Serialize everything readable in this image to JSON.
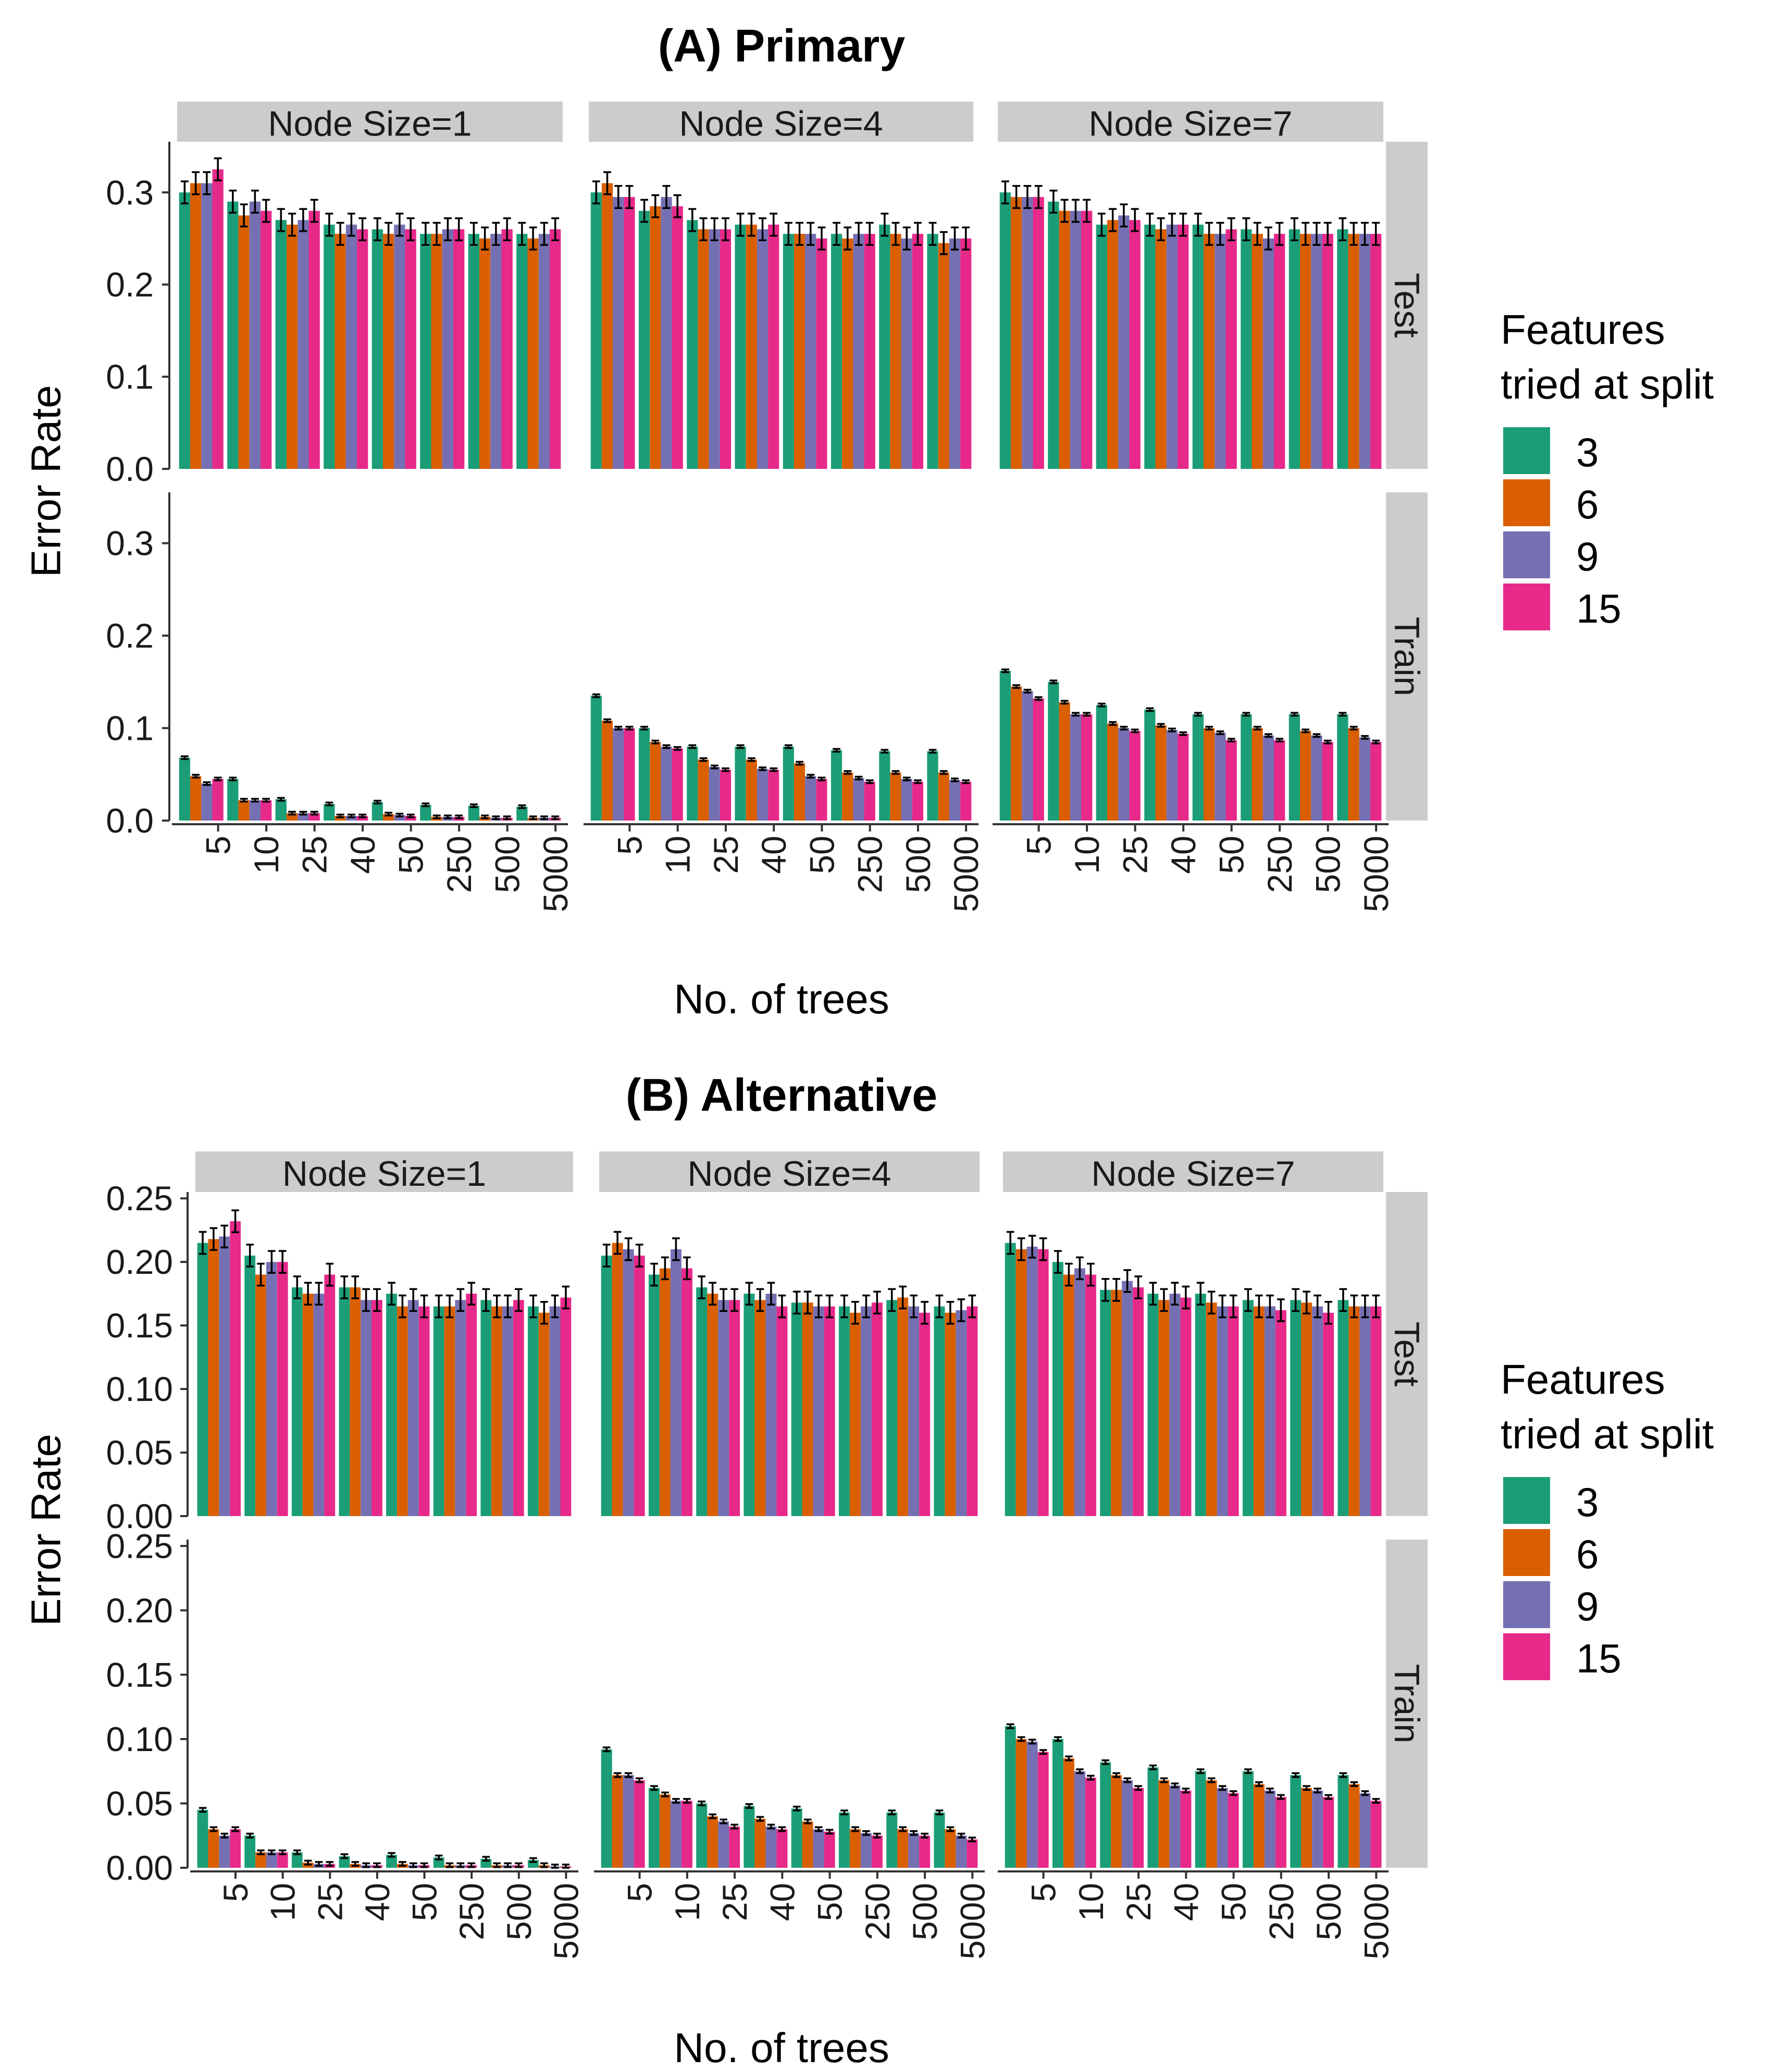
{
  "colors": {
    "3": "#1b9e77",
    "6": "#d95f02",
    "9": "#7570b3",
    "15": "#e7298a",
    "strip": "#cccccc",
    "errorbar": "#000000",
    "axis": "#333333"
  },
  "legend": {
    "title_line1": "Features",
    "title_line2": "tried at split",
    "entries": [
      "3",
      "6",
      "9",
      "15"
    ]
  },
  "chart_data": [
    {
      "type": "bar",
      "title": "(A) Primary",
      "xlabel": "No. of trees",
      "ylabel": "Error Rate",
      "facet_columns": [
        "Node Size=1",
        "Node Size=4",
        "Node Size=7"
      ],
      "facet_rows": [
        "Test",
        "Train"
      ],
      "categories": [
        "5",
        "10",
        "25",
        "40",
        "50",
        "250",
        "500",
        "5000"
      ],
      "series_names": [
        "3",
        "6",
        "9",
        "15"
      ],
      "y_ticks": [
        "0.0",
        "0.1",
        "0.2",
        "0.3"
      ],
      "ylim": [
        0,
        0.355
      ],
      "panels": {
        "Test": {
          "Node Size=1": {
            "3": [
              0.3,
              0.29,
              0.27,
              0.265,
              0.26,
              0.255,
              0.255,
              0.255
            ],
            "6": [
              0.31,
              0.275,
              0.265,
              0.255,
              0.255,
              0.255,
              0.25,
              0.25
            ],
            "9": [
              0.31,
              0.29,
              0.27,
              0.265,
              0.265,
              0.26,
              0.255,
              0.255
            ],
            "15": [
              0.325,
              0.28,
              0.28,
              0.26,
              0.26,
              0.26,
              0.26,
              0.26
            ]
          },
          "Node Size=4": {
            "3": [
              0.3,
              0.28,
              0.27,
              0.265,
              0.255,
              0.255,
              0.265,
              0.255
            ],
            "6": [
              0.31,
              0.285,
              0.26,
              0.265,
              0.255,
              0.25,
              0.255,
              0.245
            ],
            "9": [
              0.295,
              0.295,
              0.26,
              0.26,
              0.255,
              0.255,
              0.25,
              0.25
            ],
            "15": [
              0.295,
              0.285,
              0.26,
              0.265,
              0.25,
              0.255,
              0.255,
              0.25
            ]
          },
          "Node Size=7": {
            "3": [
              0.3,
              0.29,
              0.265,
              0.265,
              0.265,
              0.26,
              0.26,
              0.26
            ],
            "6": [
              0.295,
              0.28,
              0.27,
              0.26,
              0.255,
              0.255,
              0.255,
              0.255
            ],
            "9": [
              0.295,
              0.28,
              0.275,
              0.265,
              0.255,
              0.25,
              0.255,
              0.255
            ],
            "15": [
              0.295,
              0.28,
              0.27,
              0.265,
              0.26,
              0.255,
              0.255,
              0.255
            ]
          }
        },
        "Train": {
          "Node Size=1": {
            "3": [
              0.068,
              0.045,
              0.023,
              0.018,
              0.02,
              0.017,
              0.016,
              0.015
            ],
            "6": [
              0.048,
              0.022,
              0.008,
              0.005,
              0.007,
              0.004,
              0.004,
              0.003
            ],
            "9": [
              0.04,
              0.022,
              0.008,
              0.005,
              0.006,
              0.004,
              0.003,
              0.003
            ],
            "15": [
              0.045,
              0.022,
              0.008,
              0.005,
              0.005,
              0.004,
              0.003,
              0.003
            ]
          },
          "Node Size=4": {
            "3": [
              0.135,
              0.1,
              0.08,
              0.08,
              0.08,
              0.076,
              0.075,
              0.075
            ],
            "6": [
              0.108,
              0.085,
              0.066,
              0.066,
              0.062,
              0.052,
              0.052,
              0.052
            ],
            "9": [
              0.1,
              0.08,
              0.058,
              0.056,
              0.048,
              0.046,
              0.045,
              0.044
            ],
            "15": [
              0.1,
              0.078,
              0.055,
              0.055,
              0.045,
              0.042,
              0.042,
              0.042
            ]
          },
          "Node Size=7": {
            "3": [
              0.162,
              0.15,
              0.125,
              0.12,
              0.115,
              0.115,
              0.115,
              0.115
            ],
            "6": [
              0.145,
              0.128,
              0.105,
              0.103,
              0.1,
              0.1,
              0.097,
              0.1
            ],
            "9": [
              0.14,
              0.115,
              0.1,
              0.098,
              0.095,
              0.092,
              0.092,
              0.09
            ],
            "15": [
              0.132,
              0.115,
              0.097,
              0.094,
              0.087,
              0.087,
              0.085,
              0.085
            ]
          }
        }
      }
    },
    {
      "type": "bar",
      "title": "(B) Alternative",
      "xlabel": "No. of trees",
      "ylabel": "Error Rate",
      "facet_columns": [
        "Node Size=1",
        "Node Size=4",
        "Node Size=7"
      ],
      "facet_rows": [
        "Test",
        "Train"
      ],
      "categories": [
        "5",
        "10",
        "25",
        "40",
        "50",
        "250",
        "500",
        "5000"
      ],
      "series_names": [
        "3",
        "6",
        "9",
        "15"
      ],
      "y_ticks": [
        "0.00",
        "0.05",
        "0.10",
        "0.15",
        "0.20",
        "0.25"
      ],
      "ylim": [
        0,
        0.255
      ],
      "panels": {
        "Test": {
          "Node Size=1": {
            "3": [
              0.215,
              0.205,
              0.18,
              0.18,
              0.175,
              0.165,
              0.17,
              0.165
            ],
            "6": [
              0.218,
              0.19,
              0.175,
              0.18,
              0.165,
              0.165,
              0.165,
              0.16
            ],
            "9": [
              0.22,
              0.2,
              0.175,
              0.17,
              0.17,
              0.17,
              0.165,
              0.165
            ],
            "15": [
              0.232,
              0.2,
              0.19,
              0.17,
              0.165,
              0.175,
              0.17,
              0.172
            ]
          },
          "Node Size=4": {
            "3": [
              0.205,
              0.19,
              0.18,
              0.175,
              0.168,
              0.165,
              0.17,
              0.165
            ],
            "6": [
              0.215,
              0.195,
              0.175,
              0.17,
              0.168,
              0.16,
              0.172,
              0.16
            ],
            "9": [
              0.21,
              0.21,
              0.17,
              0.175,
              0.165,
              0.165,
              0.165,
              0.162
            ],
            "15": [
              0.205,
              0.195,
              0.17,
              0.165,
              0.165,
              0.168,
              0.16,
              0.165
            ]
          },
          "Node Size=7": {
            "3": [
              0.215,
              0.2,
              0.178,
              0.175,
              0.175,
              0.17,
              0.17,
              0.17
            ],
            "6": [
              0.21,
              0.19,
              0.178,
              0.17,
              0.168,
              0.165,
              0.168,
              0.165
            ],
            "9": [
              0.212,
              0.195,
              0.185,
              0.175,
              0.165,
              0.165,
              0.165,
              0.165
            ],
            "15": [
              0.21,
              0.19,
              0.18,
              0.172,
              0.165,
              0.162,
              0.16,
              0.165
            ]
          }
        },
        "Train": {
          "Node Size=1": {
            "3": [
              0.045,
              0.025,
              0.012,
              0.009,
              0.01,
              0.008,
              0.007,
              0.006
            ],
            "6": [
              0.03,
              0.012,
              0.004,
              0.003,
              0.003,
              0.002,
              0.002,
              0.002
            ],
            "9": [
              0.025,
              0.012,
              0.003,
              0.002,
              0.002,
              0.002,
              0.002,
              0.001
            ],
            "15": [
              0.03,
              0.012,
              0.003,
              0.002,
              0.002,
              0.002,
              0.002,
              0.001
            ]
          },
          "Node Size=4": {
            "3": [
              0.092,
              0.062,
              0.05,
              0.048,
              0.046,
              0.043,
              0.043,
              0.043
            ],
            "6": [
              0.072,
              0.057,
              0.04,
              0.038,
              0.036,
              0.03,
              0.03,
              0.03
            ],
            "9": [
              0.072,
              0.052,
              0.036,
              0.032,
              0.03,
              0.027,
              0.027,
              0.025
            ],
            "15": [
              0.068,
              0.052,
              0.032,
              0.03,
              0.028,
              0.025,
              0.025,
              0.022
            ]
          },
          "Node Size=7": {
            "3": [
              0.11,
              0.1,
              0.082,
              0.078,
              0.075,
              0.075,
              0.072,
              0.072
            ],
            "6": [
              0.1,
              0.085,
              0.072,
              0.068,
              0.068,
              0.065,
              0.062,
              0.065
            ],
            "9": [
              0.098,
              0.075,
              0.068,
              0.064,
              0.062,
              0.06,
              0.06,
              0.058
            ],
            "15": [
              0.09,
              0.07,
              0.062,
              0.06,
              0.058,
              0.055,
              0.055,
              0.052
            ]
          }
        }
      }
    }
  ]
}
